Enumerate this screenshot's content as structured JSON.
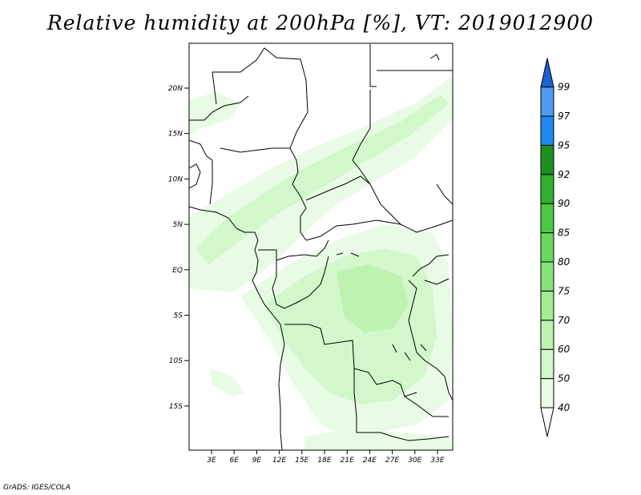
{
  "title": "Relative humidity at 200hPa [%], VT: 2019012900",
  "credit": "GrADS: IGES/COLA",
  "map": {
    "lat_ticks": [
      "20N",
      "15N",
      "10N",
      "5N",
      "EQ",
      "5S",
      "10S",
      "15S"
    ],
    "lon_ticks": [
      "3E",
      "6E",
      "9E",
      "12E",
      "15E",
      "18E",
      "21E",
      "24E",
      "27E",
      "30E",
      "33E"
    ]
  },
  "colorbar": {
    "levels": [
      "40",
      "50",
      "60",
      "70",
      "75",
      "80",
      "85",
      "90",
      "92",
      "95",
      "97",
      "99"
    ],
    "colors": [
      "#ffffff",
      "#e8fbe4",
      "#d1f7ca",
      "#bdf2b0",
      "#a2eb93",
      "#86e378",
      "#69d85c",
      "#4ac842",
      "#2fb02e",
      "#1c8f1e",
      "#1f88f0",
      "#4b9af5",
      "#1d60d0"
    ]
  },
  "chart_data": {
    "type": "heatmap",
    "variable": "Relative humidity at 200hPa",
    "unit": "%",
    "valid_time": "2019012900",
    "lon_range": [
      0,
      35
    ],
    "lat_range": [
      -20,
      24
    ],
    "contour_levels": [
      40,
      50,
      60,
      70,
      75,
      80,
      85,
      90,
      92,
      95,
      97,
      99
    ],
    "max_shaded_level": 60
  }
}
